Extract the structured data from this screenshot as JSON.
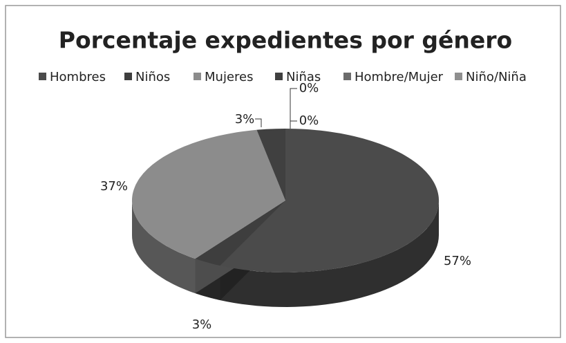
{
  "chart_data": {
    "type": "pie3d",
    "title": "Porcentaje expedientes por género",
    "categories": [
      "Hombres",
      "Niños",
      "Mujeres",
      "Niñas",
      "Hombre/Mujer",
      "Niño/Niña"
    ],
    "values": [
      57,
      3,
      37,
      3,
      0,
      0
    ],
    "value_labels": [
      "57%",
      "3%",
      "37%",
      "3%",
      "0%",
      "0%"
    ],
    "colors": [
      "#4b4b4b",
      "#3e3e3e",
      "#8c8c8c",
      "#404040",
      "#6b6b6b",
      "#8f8f8f"
    ],
    "legend": "top"
  }
}
